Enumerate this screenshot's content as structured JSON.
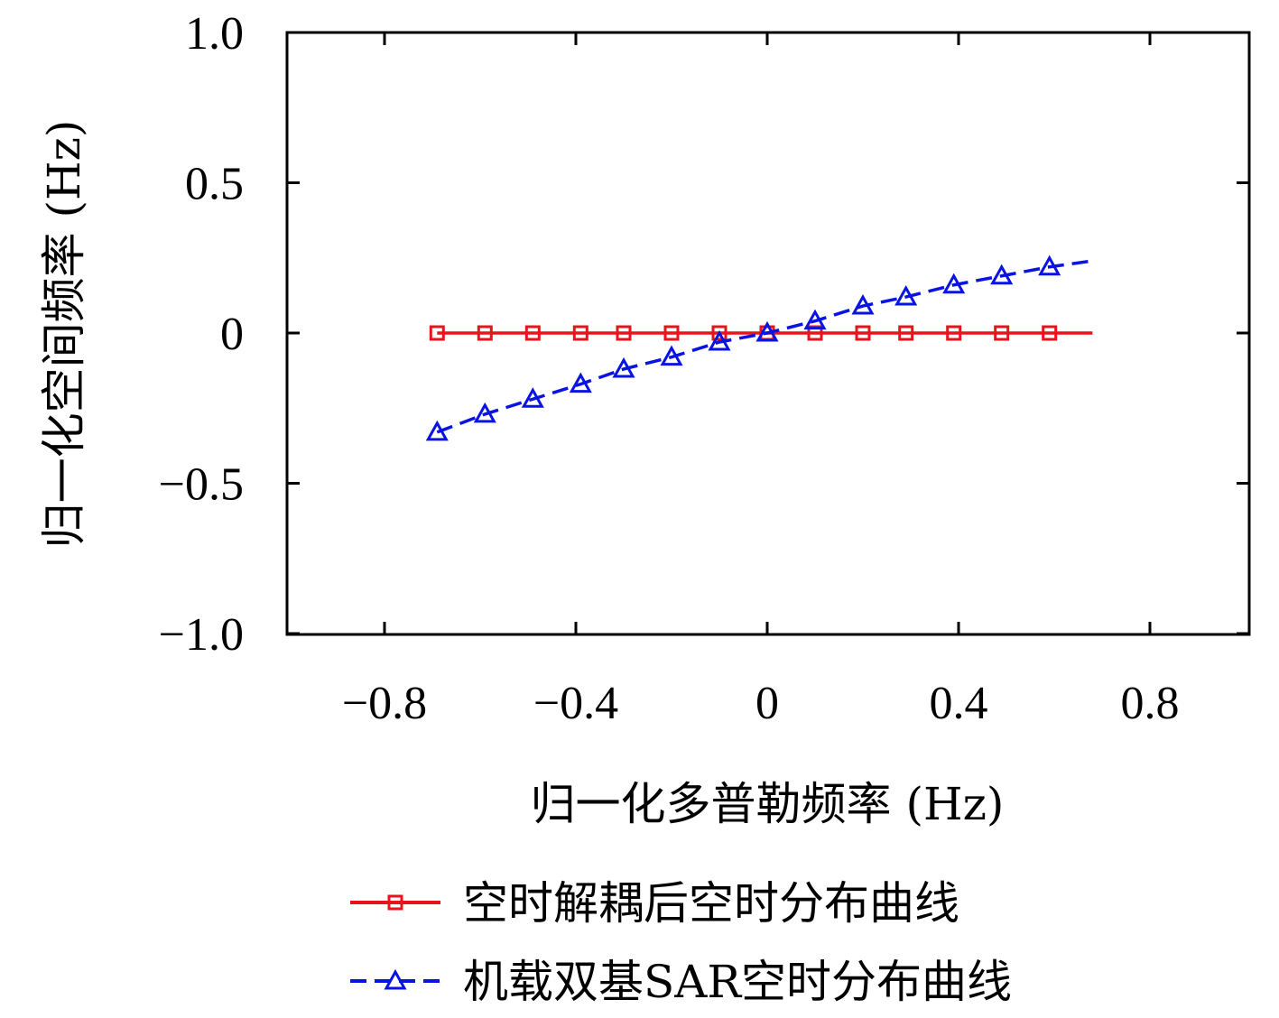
{
  "chart_data": {
    "type": "line",
    "title": "",
    "xlabel": "归一化多普勒频率 (Hz)",
    "ylabel": "归一化空间频率 (Hz)",
    "xlim": [
      -1.0,
      1.0
    ],
    "ylim": [
      -1.0,
      1.0
    ],
    "x_ticks": [
      -0.8,
      -0.4,
      0,
      0.4,
      0.8
    ],
    "x_tick_labels": [
      "−0.8",
      "−0.4",
      "0",
      "0.4",
      "0.8"
    ],
    "y_ticks": [
      1.0,
      0.5,
      0,
      -0.5,
      -1.0
    ],
    "y_tick_labels": [
      "1.0",
      "0.5",
      "0",
      "−0.5",
      "−1.0"
    ],
    "grid": false,
    "legend_position": "bottom",
    "series": [
      {
        "name": "空时解耦后空时分布曲线",
        "color": "#e8141b",
        "line_style": "solid",
        "marker": "square",
        "x": [
          -0.69,
          -0.59,
          -0.49,
          -0.39,
          -0.3,
          -0.2,
          -0.1,
          0.0,
          0.1,
          0.2,
          0.29,
          0.39,
          0.49,
          0.59
        ],
        "y": [
          0,
          0,
          0,
          0,
          0,
          0,
          0,
          0,
          0,
          0,
          0,
          0,
          0,
          0
        ],
        "line_x_range": [
          -0.69,
          0.68
        ]
      },
      {
        "name": "机载双基SAR空时分布曲线",
        "color": "#0a14e0",
        "line_style": "dashed",
        "marker": "triangle",
        "x": [
          -0.69,
          -0.59,
          -0.49,
          -0.39,
          -0.3,
          -0.2,
          -0.1,
          0.0,
          0.1,
          0.2,
          0.29,
          0.39,
          0.49,
          0.59
        ],
        "y": [
          -0.33,
          -0.27,
          -0.22,
          -0.17,
          -0.12,
          -0.08,
          -0.03,
          0.0,
          0.04,
          0.09,
          0.12,
          0.16,
          0.19,
          0.22
        ],
        "line_x_range": [
          -0.69,
          0.68
        ],
        "line_y_end": 0.24
      }
    ]
  }
}
